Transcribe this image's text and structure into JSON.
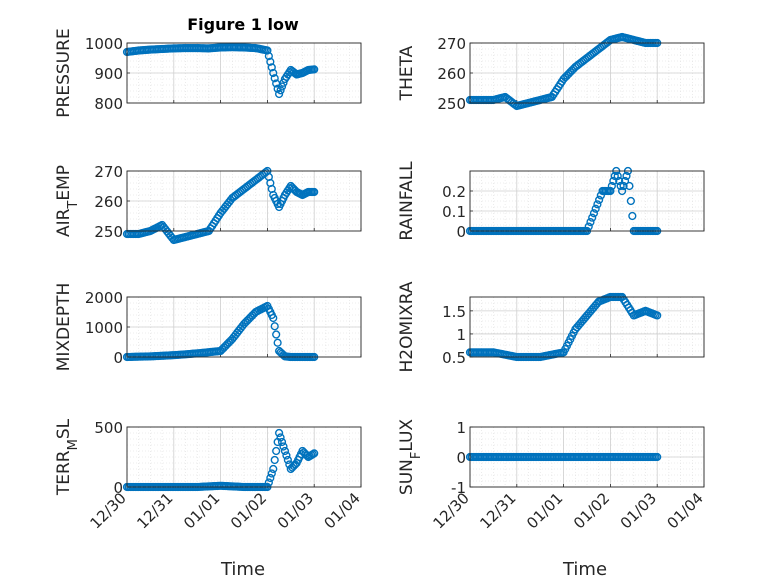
{
  "figure": {
    "title": "Figure 1 low",
    "xlabel": "Time",
    "x_ticks": [
      "12/30",
      "12/31",
      "01/01",
      "01/02",
      "01/03",
      "01/04"
    ]
  },
  "colors": {
    "marker": "#0072BD",
    "axis": "#262626",
    "grid": "#dedede",
    "background": "#ffffff"
  },
  "chart_data": [
    {
      "type": "scatter",
      "ylabel": "PRESSURE",
      "ylim": [
        800,
        1000
      ],
      "yticks": [
        "800",
        "900",
        "1000"
      ],
      "xlim": [
        "12/30",
        "01/04"
      ],
      "grid": true,
      "x": [
        "12/30 00:00",
        "12/30 06:00",
        "12/30 12:00",
        "12/30 18:00",
        "12/31 00:00",
        "12/31 06:00",
        "12/31 12:00",
        "12/31 18:00",
        "01/01 00:00",
        "01/01 06:00",
        "01/01 12:00",
        "01/01 18:00",
        "01/02 00:00",
        "01/02 03:00",
        "01/02 06:00",
        "01/02 09:00",
        "01/02 12:00",
        "01/02 15:00",
        "01/02 18:00",
        "01/02 21:00",
        "01/03 00:00"
      ],
      "y": [
        970,
        975,
        978,
        980,
        982,
        983,
        983,
        982,
        985,
        986,
        985,
        983,
        975,
        900,
        830,
        880,
        910,
        895,
        900,
        910,
        912
      ]
    },
    {
      "type": "scatter",
      "ylabel": "THETA",
      "ylim": [
        250,
        270
      ],
      "yticks": [
        "250",
        "260",
        "270"
      ],
      "xlim": [
        "12/30",
        "01/04"
      ],
      "grid": true,
      "x": [
        "12/30 00:00",
        "12/30 06:00",
        "12/30 12:00",
        "12/30 18:00",
        "12/31 00:00",
        "12/31 06:00",
        "12/31 12:00",
        "12/31 18:00",
        "01/01 00:00",
        "01/01 06:00",
        "01/01 12:00",
        "01/01 18:00",
        "01/02 00:00",
        "01/02 06:00",
        "01/02 12:00",
        "01/02 18:00",
        "01/03 00:00"
      ],
      "y": [
        251,
        251,
        251,
        252,
        249,
        250,
        251,
        252,
        258,
        262,
        265,
        268,
        271,
        272,
        271,
        270,
        270
      ]
    },
    {
      "type": "scatter",
      "ylabel": "AIR_TEMP",
      "ylim": [
        250,
        270
      ],
      "yticks": [
        "250",
        "260",
        "270"
      ],
      "xlim": [
        "12/30",
        "01/04"
      ],
      "grid": true,
      "x": [
        "12/30 00:00",
        "12/30 06:00",
        "12/30 12:00",
        "12/30 18:00",
        "12/31 00:00",
        "12/31 06:00",
        "12/31 12:00",
        "12/31 18:00",
        "01/01 00:00",
        "01/01 06:00",
        "01/01 12:00",
        "01/01 18:00",
        "01/02 00:00",
        "01/02 03:00",
        "01/02 06:00",
        "01/02 09:00",
        "01/02 12:00",
        "01/02 15:00",
        "01/02 18:00",
        "01/02 21:00",
        "01/03 00:00"
      ],
      "y": [
        249,
        249,
        250,
        252,
        247,
        248,
        249,
        250,
        256,
        261,
        264,
        267,
        270,
        262,
        258,
        262,
        265,
        263,
        262,
        263,
        263
      ]
    },
    {
      "type": "scatter",
      "ylabel": "RAINFALL",
      "ylim": [
        0,
        0.3
      ],
      "yticks": [
        "0",
        "0.1",
        "0.2"
      ],
      "xlim": [
        "12/30",
        "01/04"
      ],
      "grid": true,
      "x": [
        "12/30 00:00",
        "12/30 12:00",
        "12/31 00:00",
        "12/31 12:00",
        "01/01 00:00",
        "01/01 12:00",
        "01/01 20:00",
        "01/02 00:00",
        "01/02 03:00",
        "01/02 06:00",
        "01/02 09:00",
        "01/02 12:00",
        "01/02 18:00",
        "01/03 00:00"
      ],
      "y": [
        0,
        0,
        0,
        0,
        0,
        0,
        0.2,
        0.2,
        0.3,
        0.2,
        0.3,
        0,
        0,
        0
      ]
    },
    {
      "type": "scatter",
      "ylabel": "MIXDEPTH",
      "ylim": [
        0,
        2000
      ],
      "yticks": [
        "0",
        "1000",
        "2000"
      ],
      "xlim": [
        "12/30",
        "01/04"
      ],
      "grid": true,
      "x": [
        "12/30 00:00",
        "12/30 12:00",
        "12/31 00:00",
        "12/31 12:00",
        "01/01 00:00",
        "01/01 06:00",
        "01/01 12:00",
        "01/01 18:00",
        "01/02 00:00",
        "01/02 03:00",
        "01/02 06:00",
        "01/02 09:00",
        "01/02 12:00",
        "01/02 18:00",
        "01/03 00:00"
      ],
      "y": [
        0,
        20,
        60,
        120,
        200,
        600,
        1100,
        1500,
        1700,
        1300,
        200,
        20,
        0,
        0,
        0
      ]
    },
    {
      "type": "scatter",
      "ylabel": "H2OMIXRA",
      "ylim": [
        0.5,
        1.8
      ],
      "yticks": [
        "0.5",
        "1",
        "1.5"
      ],
      "xlim": [
        "12/30",
        "01/04"
      ],
      "grid": true,
      "x": [
        "12/30 00:00",
        "12/30 12:00",
        "12/31 00:00",
        "12/31 12:00",
        "01/01 00:00",
        "01/01 06:00",
        "01/01 12:00",
        "01/01 18:00",
        "01/02 00:00",
        "01/02 06:00",
        "01/02 12:00",
        "01/02 18:00",
        "01/03 00:00"
      ],
      "y": [
        0.6,
        0.6,
        0.5,
        0.5,
        0.6,
        1.1,
        1.4,
        1.7,
        1.8,
        1.8,
        1.4,
        1.5,
        1.4
      ]
    },
    {
      "type": "scatter",
      "ylabel": "TERR_MSL",
      "ylim": [
        0,
        500
      ],
      "yticks": [
        "0",
        "500"
      ],
      "xlim": [
        "12/30",
        "01/04"
      ],
      "grid": true,
      "x": [
        "12/30 00:00",
        "12/30 12:00",
        "12/31 00:00",
        "12/31 12:00",
        "01/01 00:00",
        "01/01 12:00",
        "01/02 00:00",
        "01/02 03:00",
        "01/02 06:00",
        "01/02 09:00",
        "01/02 12:00",
        "01/02 15:00",
        "01/02 18:00",
        "01/02 21:00",
        "01/03 00:00"
      ],
      "y": [
        0,
        0,
        0,
        0,
        10,
        0,
        0,
        150,
        450,
        300,
        150,
        200,
        300,
        250,
        280
      ]
    },
    {
      "type": "scatter",
      "ylabel": "SUN_FLUX",
      "ylim": [
        -1,
        1
      ],
      "yticks": [
        "-1",
        "0",
        "1"
      ],
      "xlim": [
        "12/30",
        "01/04"
      ],
      "grid": true,
      "x": [
        "12/30 00:00",
        "12/30 12:00",
        "12/31 00:00",
        "12/31 12:00",
        "01/01 00:00",
        "01/01 12:00",
        "01/02 00:00",
        "01/02 12:00",
        "01/03 00:00"
      ],
      "y": [
        0,
        0,
        0,
        0,
        0,
        0,
        0,
        0,
        0
      ]
    }
  ]
}
